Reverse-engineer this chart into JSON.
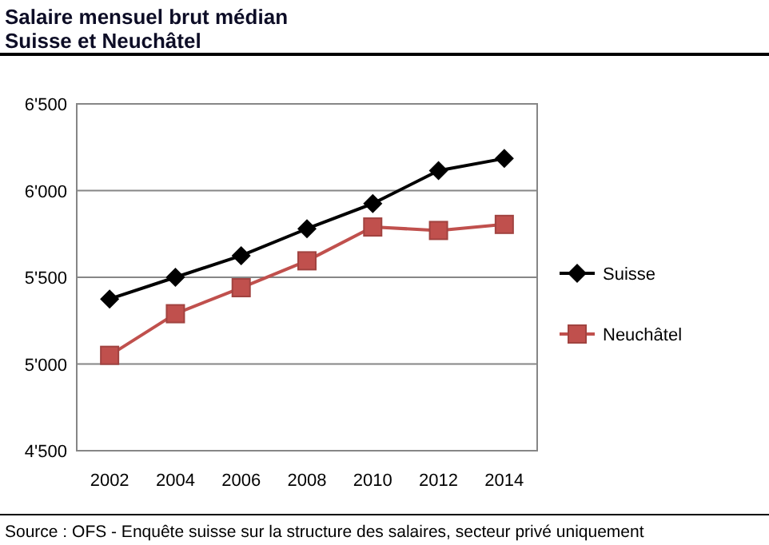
{
  "chart_data": {
    "type": "line",
    "title": "Salaire mensuel brut médian",
    "subtitle": "Suisse et Neuchâtel",
    "categories": [
      "2002",
      "2004",
      "2006",
      "2008",
      "2010",
      "2012",
      "2014"
    ],
    "series": [
      {
        "name": "Suisse",
        "color": "#000000",
        "marker": "diamond",
        "values": [
          5375,
          5500,
          5625,
          5780,
          5925,
          6115,
          6185
        ]
      },
      {
        "name": "Neuchâtel",
        "color": "#c0504d",
        "marker": "square",
        "values": [
          5050,
          5290,
          5440,
          5595,
          5790,
          5770,
          5805
        ]
      }
    ],
    "ylim": [
      4500,
      6500
    ],
    "yticks": [
      {
        "value": 4500,
        "label": "4'500"
      },
      {
        "value": 5000,
        "label": "5'000"
      },
      {
        "value": 5500,
        "label": "5'500"
      },
      {
        "value": 6000,
        "label": "6'000"
      },
      {
        "value": 6500,
        "label": "6'500"
      }
    ],
    "grid": "y",
    "legend": "right",
    "annotations": [
      "Source : OFS - Enquête suisse sur la structure des salaires, secteur privé uniquement"
    ]
  }
}
